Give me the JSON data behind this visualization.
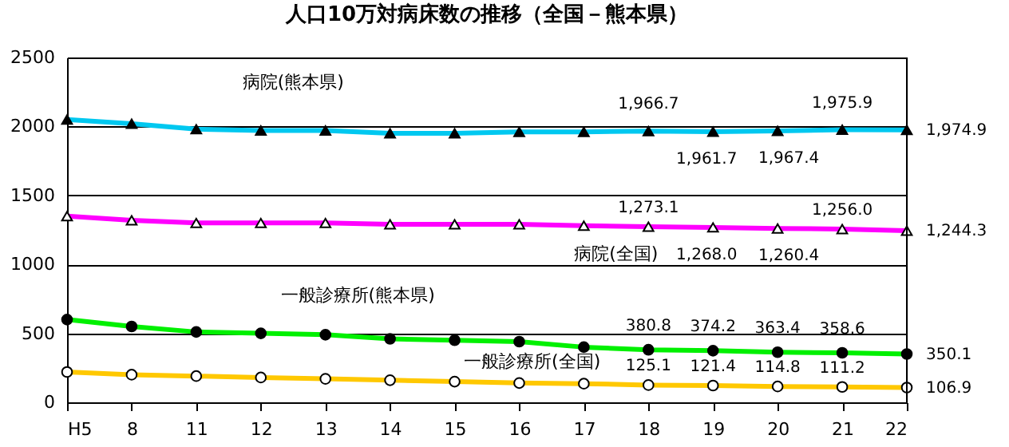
{
  "chart_data": {
    "type": "line",
    "title": "人口10万対病床数の推移（全国－熊本県）",
    "categories": [
      "H5",
      "8",
      "11",
      "12",
      "13",
      "14",
      "15",
      "16",
      "17",
      "18",
      "19",
      "20",
      "21",
      "22"
    ],
    "ylim": [
      0,
      2500
    ],
    "yticks": [
      0,
      500,
      1000,
      1500,
      2000,
      2500
    ],
    "grid": "y",
    "series": [
      {
        "name": "病院(熊本県)",
        "color": "#00c8f0",
        "marker": "triangle",
        "values": [
          2050,
          2020,
          1980,
          1970,
          1970,
          1950,
          1950,
          1960,
          1960,
          1966.7,
          1961.7,
          1967.4,
          1975.9,
          1974.9
        ],
        "value_labels": [
          null,
          null,
          null,
          null,
          null,
          null,
          null,
          null,
          null,
          "1,966.7",
          "1,961.7",
          "1,967.4",
          "1,975.9",
          "1,974.9"
        ]
      },
      {
        "name": "病院(全国)",
        "color": "#ff00ff",
        "marker": "triangle",
        "values": [
          1350,
          1320,
          1300,
          1300,
          1300,
          1290,
          1290,
          1290,
          1280,
          1273.1,
          1268.0,
          1260.4,
          1256.0,
          1244.3
        ],
        "value_labels": [
          null,
          null,
          null,
          null,
          null,
          null,
          null,
          null,
          null,
          "1,273.1",
          "1,268.0",
          "1,260.4",
          "1,256.0",
          "1,244.3"
        ]
      },
      {
        "name": "一般診療所(熊本県)",
        "color": "#00f000",
        "marker": "circle",
        "values": [
          600,
          550,
          510,
          500,
          490,
          460,
          450,
          440,
          400,
          380.8,
          374.2,
          363.4,
          358.6,
          350.1
        ],
        "value_labels": [
          null,
          null,
          null,
          null,
          null,
          null,
          null,
          null,
          null,
          "380.8",
          "374.2",
          "363.4",
          "358.6",
          "350.1"
        ]
      },
      {
        "name": "一般診療所(全国)",
        "color": "#ffc800",
        "marker": "circle",
        "values": [
          220,
          200,
          190,
          180,
          170,
          160,
          150,
          140,
          135,
          125.1,
          121.4,
          114.8,
          111.2,
          106.9
        ],
        "value_labels": [
          null,
          null,
          null,
          null,
          null,
          null,
          null,
          null,
          null,
          "125.1",
          "121.4",
          "114.8",
          "111.2",
          "106.9"
        ]
      }
    ]
  }
}
